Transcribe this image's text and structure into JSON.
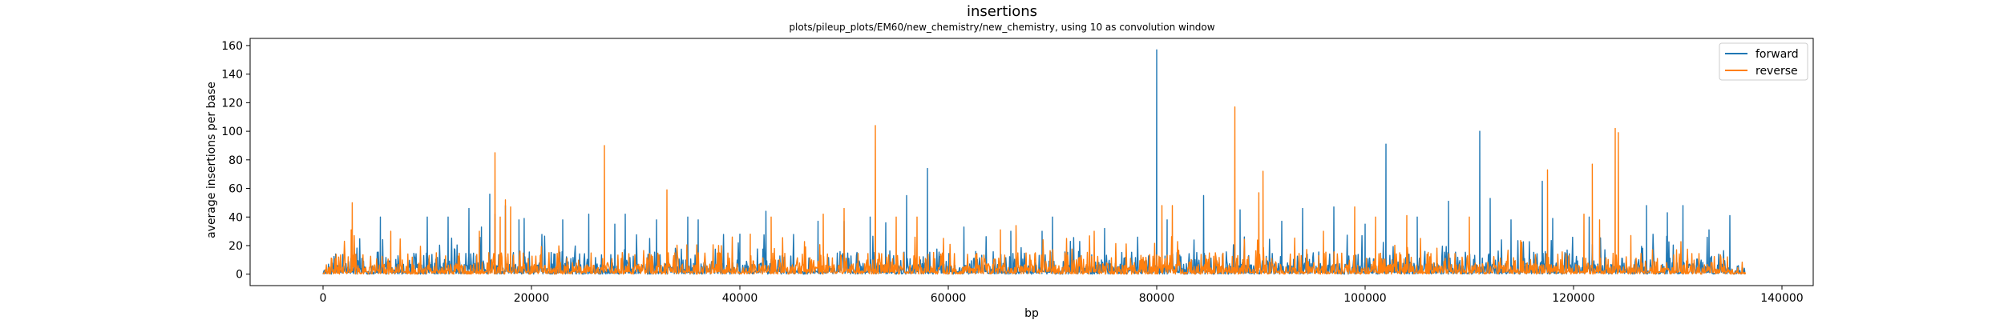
{
  "chart_data": {
    "type": "line",
    "title": "insertions",
    "subtitle": "plots/pileup_plots/EM60/new_chemistry/new_chemistry, using 10 as convolution window",
    "xlabel": "bp",
    "ylabel": "average insertions per base",
    "xlim": [
      -7000,
      143000
    ],
    "ylim": [
      -8,
      165
    ],
    "xticks": [
      0,
      20000,
      40000,
      60000,
      80000,
      100000,
      120000,
      140000
    ],
    "yticks": [
      0,
      20,
      40,
      60,
      80,
      100,
      120,
      140,
      160
    ],
    "legend_position": "top-right",
    "grid": false,
    "x_extent": [
      0,
      136500
    ],
    "series": [
      {
        "name": "forward",
        "color": "#1f77b4",
        "baseline": 8,
        "peaks": [
          [
            5500,
            40
          ],
          [
            10000,
            40
          ],
          [
            12000,
            40
          ],
          [
            14000,
            46
          ],
          [
            15200,
            33
          ],
          [
            16000,
            56
          ],
          [
            16500,
            42
          ],
          [
            17500,
            48
          ],
          [
            18800,
            38
          ],
          [
            19300,
            39
          ],
          [
            23000,
            38
          ],
          [
            25500,
            42
          ],
          [
            28000,
            35
          ],
          [
            29000,
            42
          ],
          [
            32000,
            38
          ],
          [
            35000,
            40
          ],
          [
            36000,
            38
          ],
          [
            40000,
            28
          ],
          [
            42500,
            44
          ],
          [
            47500,
            37
          ],
          [
            50000,
            37
          ],
          [
            52500,
            40
          ],
          [
            54000,
            36
          ],
          [
            56000,
            55
          ],
          [
            58000,
            74
          ],
          [
            61500,
            33
          ],
          [
            66000,
            30
          ],
          [
            69000,
            30
          ],
          [
            70000,
            40
          ],
          [
            75000,
            32
          ],
          [
            80000,
            157
          ],
          [
            81000,
            38
          ],
          [
            84500,
            55
          ],
          [
            88000,
            45
          ],
          [
            92000,
            37
          ],
          [
            94000,
            46
          ],
          [
            97000,
            47
          ],
          [
            100000,
            35
          ],
          [
            102000,
            91
          ],
          [
            105000,
            40
          ],
          [
            108000,
            51
          ],
          [
            111000,
            100
          ],
          [
            112000,
            53
          ],
          [
            114000,
            38
          ],
          [
            117000,
            65
          ],
          [
            118000,
            39
          ],
          [
            121500,
            40
          ],
          [
            127000,
            48
          ],
          [
            129000,
            43
          ],
          [
            130500,
            48
          ],
          [
            133000,
            31
          ],
          [
            135000,
            41
          ]
        ]
      },
      {
        "name": "reverse",
        "color": "#ff7f0e",
        "baseline": 7,
        "peaks": [
          [
            1500,
            12
          ],
          [
            2700,
            31
          ],
          [
            2800,
            50
          ],
          [
            6500,
            30
          ],
          [
            15000,
            30
          ],
          [
            16500,
            85
          ],
          [
            17000,
            40
          ],
          [
            17500,
            52
          ],
          [
            18000,
            47
          ],
          [
            27000,
            90
          ],
          [
            33000,
            59
          ],
          [
            41000,
            28
          ],
          [
            43000,
            40
          ],
          [
            48000,
            42
          ],
          [
            50000,
            46
          ],
          [
            53000,
            104
          ],
          [
            55000,
            40
          ],
          [
            57000,
            40
          ],
          [
            65000,
            31
          ],
          [
            66500,
            34
          ],
          [
            74000,
            30
          ],
          [
            80500,
            48
          ],
          [
            81500,
            48
          ],
          [
            87500,
            117
          ],
          [
            89800,
            57
          ],
          [
            90200,
            72
          ],
          [
            96000,
            30
          ],
          [
            99000,
            47
          ],
          [
            101000,
            40
          ],
          [
            104000,
            41
          ],
          [
            110000,
            40
          ],
          [
            117500,
            73
          ],
          [
            121000,
            42
          ],
          [
            121800,
            77
          ],
          [
            122500,
            38
          ],
          [
            124000,
            102
          ],
          [
            124300,
            99
          ],
          [
            125500,
            27
          ]
        ]
      }
    ]
  }
}
